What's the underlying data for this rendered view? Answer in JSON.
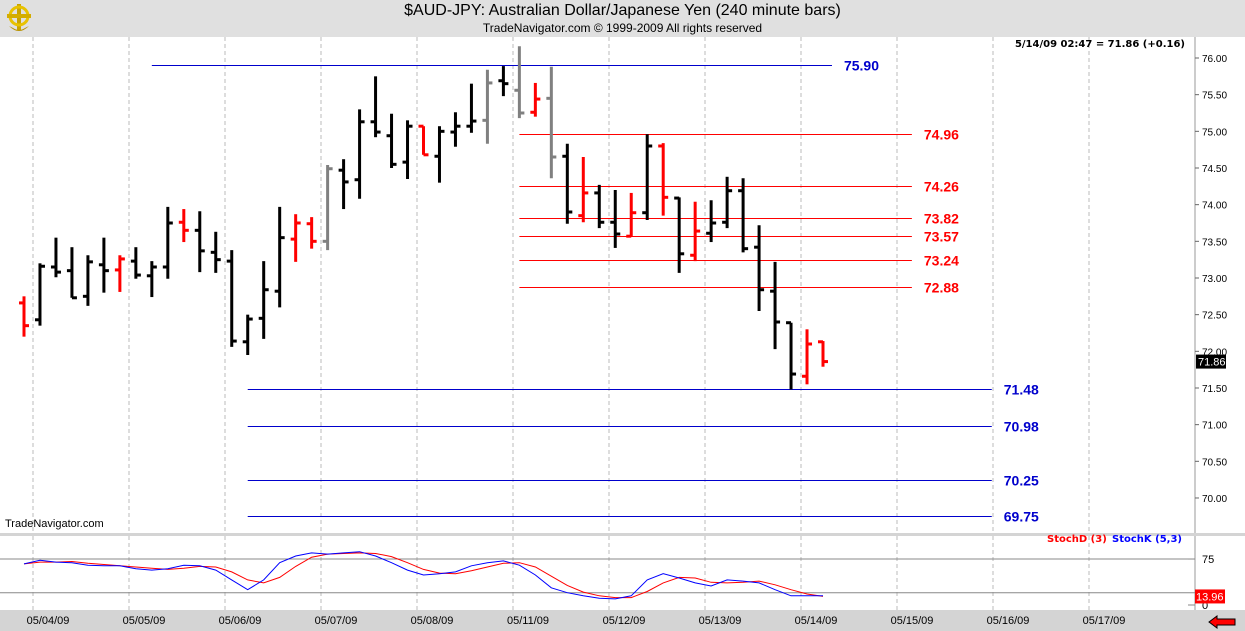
{
  "header": {
    "title": "$AUD-JPY:  Australian Dollar/Japanese Yen  (240 minute bars)",
    "subtitle": "TradeNavigator.com © 1999-2009 All rights reserved",
    "logo": "TradeNavigator"
  },
  "readout": "5/14/09 02:47 = 71.86 (+0.16)",
  "watermark": "TradeNavigator.com",
  "last_price_label": "71.86",
  "stoch_last_label": "13.96",
  "legend": {
    "stochd": "StochD (3)",
    "stochk": "StochK (5,3)"
  },
  "colors": {
    "up": "#000000",
    "down": "#ff0000",
    "neutral": "#808080",
    "level_blue": "#0000cc",
    "level_red": "#ff0000",
    "stochd": "#ff0000",
    "stochk": "#0000ff"
  },
  "chart_data": {
    "type": "ohlc",
    "ylim": [
      69.75,
      76.2
    ],
    "yticks": [
      "76.00",
      "75.50",
      "75.00",
      "74.50",
      "74.00",
      "73.50",
      "73.00",
      "72.50",
      "72.00",
      "71.50",
      "71.00",
      "70.50",
      "70.00"
    ],
    "date_labels": [
      "05/04/09",
      "05/05/09",
      "05/06/09",
      "05/07/09",
      "05/08/09",
      "05/11/09",
      "05/12/09",
      "05/13/09",
      "05/14/09",
      "05/15/09",
      "05/16/09",
      "05/17/09"
    ],
    "bars": [
      {
        "o": 72.66,
        "h": 72.75,
        "l": 72.2,
        "c": 72.35,
        "col": "down"
      },
      {
        "o": 72.43,
        "h": 73.2,
        "l": 72.35,
        "c": 73.16,
        "col": "up"
      },
      {
        "o": 73.15,
        "h": 73.55,
        "l": 73.01,
        "c": 73.08,
        "col": "up"
      },
      {
        "o": 73.1,
        "h": 73.42,
        "l": 72.73,
        "c": 72.73,
        "col": "up"
      },
      {
        "o": 72.75,
        "h": 73.31,
        "l": 72.62,
        "c": 73.22,
        "col": "up"
      },
      {
        "o": 73.18,
        "h": 73.55,
        "l": 72.8,
        "c": 73.1,
        "col": "up"
      },
      {
        "o": 73.11,
        "h": 73.31,
        "l": 72.81,
        "c": 73.26,
        "col": "down"
      },
      {
        "o": 73.23,
        "h": 73.42,
        "l": 72.99,
        "c": 73.04,
        "col": "up"
      },
      {
        "o": 73.03,
        "h": 73.23,
        "l": 72.74,
        "c": 73.15,
        "col": "up"
      },
      {
        "o": 73.15,
        "h": 73.97,
        "l": 72.99,
        "c": 73.75,
        "col": "up"
      },
      {
        "o": 73.76,
        "h": 73.94,
        "l": 73.49,
        "c": 73.65,
        "col": "down"
      },
      {
        "o": 73.65,
        "h": 73.91,
        "l": 73.08,
        "c": 73.37,
        "col": "up"
      },
      {
        "o": 73.35,
        "h": 73.63,
        "l": 73.07,
        "c": 73.25,
        "col": "up"
      },
      {
        "o": 73.23,
        "h": 73.38,
        "l": 72.06,
        "c": 72.14,
        "col": "up"
      },
      {
        "o": 72.13,
        "h": 72.5,
        "l": 71.95,
        "c": 72.44,
        "col": "up"
      },
      {
        "o": 72.45,
        "h": 73.23,
        "l": 72.17,
        "c": 72.84,
        "col": "up"
      },
      {
        "o": 72.82,
        "h": 73.97,
        "l": 72.6,
        "c": 73.55,
        "col": "up"
      },
      {
        "o": 73.53,
        "h": 73.87,
        "l": 73.22,
        "c": 73.75,
        "col": "down"
      },
      {
        "o": 73.74,
        "h": 73.83,
        "l": 73.4,
        "c": 73.5,
        "col": "down"
      },
      {
        "o": 73.5,
        "h": 74.54,
        "l": 73.38,
        "c": 74.49,
        "col": "neutral"
      },
      {
        "o": 74.47,
        "h": 74.62,
        "l": 73.94,
        "c": 74.31,
        "col": "up"
      },
      {
        "o": 74.34,
        "h": 75.3,
        "l": 74.08,
        "c": 75.13,
        "col": "up"
      },
      {
        "o": 75.13,
        "h": 75.75,
        "l": 74.92,
        "c": 74.99,
        "col": "up"
      },
      {
        "o": 74.94,
        "h": 75.24,
        "l": 74.5,
        "c": 74.55,
        "col": "up"
      },
      {
        "o": 74.58,
        "h": 75.15,
        "l": 74.35,
        "c": 75.07,
        "col": "up"
      },
      {
        "o": 75.07,
        "h": 75.07,
        "l": 74.68,
        "c": 74.68,
        "col": "down"
      },
      {
        "o": 74.66,
        "h": 75.07,
        "l": 74.3,
        "c": 75.0,
        "col": "up"
      },
      {
        "o": 74.99,
        "h": 75.26,
        "l": 74.79,
        "c": 75.07,
        "col": "up"
      },
      {
        "o": 75.07,
        "h": 75.65,
        "l": 74.98,
        "c": 75.14,
        "col": "up"
      },
      {
        "o": 75.15,
        "h": 75.84,
        "l": 74.83,
        "c": 75.66,
        "col": "neutral"
      },
      {
        "o": 75.69,
        "h": 75.89,
        "l": 75.48,
        "c": 75.65,
        "col": "up"
      },
      {
        "o": 75.56,
        "h": 76.16,
        "l": 75.18,
        "c": 75.25,
        "col": "neutral"
      },
      {
        "o": 75.26,
        "h": 75.66,
        "l": 75.2,
        "c": 75.44,
        "col": "down"
      },
      {
        "o": 75.45,
        "h": 75.88,
        "l": 74.36,
        "c": 74.65,
        "col": "neutral"
      },
      {
        "o": 74.66,
        "h": 74.83,
        "l": 73.74,
        "c": 73.9,
        "col": "up"
      },
      {
        "o": 73.85,
        "h": 74.65,
        "l": 73.76,
        "c": 74.16,
        "col": "down"
      },
      {
        "o": 74.16,
        "h": 74.27,
        "l": 73.68,
        "c": 73.76,
        "col": "up"
      },
      {
        "o": 73.76,
        "h": 74.2,
        "l": 73.41,
        "c": 73.6,
        "col": "up"
      },
      {
        "o": 73.57,
        "h": 74.16,
        "l": 73.56,
        "c": 73.89,
        "col": "down"
      },
      {
        "o": 73.89,
        "h": 74.96,
        "l": 73.79,
        "c": 74.8,
        "col": "up"
      },
      {
        "o": 74.8,
        "h": 74.84,
        "l": 73.85,
        "c": 74.1,
        "col": "down"
      },
      {
        "o": 74.09,
        "h": 74.1,
        "l": 73.07,
        "c": 73.33,
        "col": "up"
      },
      {
        "o": 73.31,
        "h": 74.04,
        "l": 73.23,
        "c": 73.64,
        "col": "down"
      },
      {
        "o": 73.61,
        "h": 74.06,
        "l": 73.49,
        "c": 73.75,
        "col": "up"
      },
      {
        "o": 73.76,
        "h": 74.38,
        "l": 73.68,
        "c": 74.19,
        "col": "up"
      },
      {
        "o": 74.19,
        "h": 74.36,
        "l": 73.35,
        "c": 73.4,
        "col": "up"
      },
      {
        "o": 73.42,
        "h": 73.72,
        "l": 72.55,
        "c": 72.84,
        "col": "up"
      },
      {
        "o": 72.82,
        "h": 73.22,
        "l": 72.03,
        "c": 72.4,
        "col": "up"
      },
      {
        "o": 72.39,
        "h": 72.39,
        "l": 71.48,
        "c": 71.69,
        "col": "up"
      },
      {
        "o": 71.66,
        "h": 72.3,
        "l": 71.55,
        "c": 72.1,
        "col": "down"
      },
      {
        "o": 72.13,
        "h": 72.14,
        "l": 71.79,
        "c": 71.86,
        "col": "down"
      }
    ],
    "levels": [
      {
        "price": 75.9,
        "label": "75.90",
        "color": "blue",
        "from_bar": 8,
        "to_bar": 51
      },
      {
        "price": 74.96,
        "label": "74.96",
        "color": "red",
        "from_bar": 31,
        "to_bar": 56
      },
      {
        "price": 74.26,
        "label": "74.26",
        "color": "red",
        "from_bar": 31,
        "to_bar": 56
      },
      {
        "price": 73.82,
        "label": "73.82",
        "color": "red",
        "from_bar": 31,
        "to_bar": 56
      },
      {
        "price": 73.57,
        "label": "73.57",
        "color": "red",
        "from_bar": 31,
        "to_bar": 56
      },
      {
        "price": 73.24,
        "label": "73.24",
        "color": "red",
        "from_bar": 31,
        "to_bar": 56
      },
      {
        "price": 72.88,
        "label": "72.88",
        "color": "red",
        "from_bar": 31,
        "to_bar": 56
      },
      {
        "price": 71.48,
        "label": "71.48",
        "color": "blue",
        "from_bar": 14,
        "to_bar": 61
      },
      {
        "price": 70.98,
        "label": "70.98",
        "color": "blue",
        "from_bar": 14,
        "to_bar": 61
      },
      {
        "price": 70.25,
        "label": "70.25",
        "color": "blue",
        "from_bar": 14,
        "to_bar": 61
      },
      {
        "price": 69.75,
        "label": "69.75",
        "color": "blue",
        "from_bar": 14,
        "to_bar": 61
      }
    ],
    "stochastic": {
      "ylim": [
        0,
        100
      ],
      "ytick_labels": [
        "75",
        "0"
      ],
      "reference_lines": [
        75,
        20
      ],
      "stochk": [
        67,
        73,
        70,
        69,
        65,
        64,
        64,
        59,
        57,
        59,
        65,
        64,
        57,
        41,
        25,
        41,
        69,
        80,
        85,
        83,
        85,
        87,
        80,
        69,
        57,
        49,
        51,
        54,
        64,
        69,
        72,
        65,
        49,
        28,
        20,
        15,
        11,
        10,
        15,
        41,
        51,
        44,
        36,
        31,
        41,
        39,
        36,
        25,
        15,
        15,
        15
      ],
      "stochd": [
        67,
        70,
        70,
        71,
        68,
        66,
        64,
        62,
        60,
        58,
        60,
        63,
        62,
        54,
        41,
        36,
        45,
        63,
        78,
        83,
        84,
        85,
        84,
        79,
        69,
        58,
        52,
        51,
        56,
        62,
        68,
        69,
        62,
        47,
        32,
        21,
        15,
        12,
        12,
        22,
        36,
        45,
        44,
        37,
        36,
        37,
        39,
        33,
        25,
        18,
        14
      ]
    }
  }
}
